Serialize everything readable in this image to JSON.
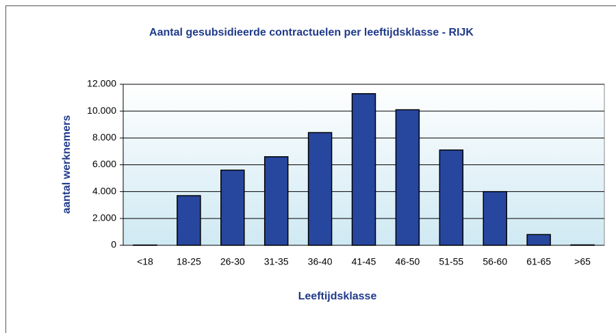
{
  "chart_data": {
    "type": "bar",
    "title": "Aantal gesubsidieerde contractuelen per leeftijdsklasse - RIJK",
    "x_label": "Leeftijdsklasse",
    "y_label": "aantal werknemers",
    "categories": [
      "<18",
      "18-25",
      "26-30",
      "31-35",
      "36-40",
      "41-45",
      "46-50",
      "51-55",
      "56-60",
      "61-65",
      ">65"
    ],
    "values": [
      20,
      3700,
      5600,
      6600,
      8400,
      11300,
      10100,
      7100,
      4000,
      800,
      30
    ],
    "color": "#27479e",
    "ylim": [
      0,
      12000
    ],
    "yticks": [
      0,
      {
        "value": 2000,
        "label": "2.000"
      },
      {
        "value": 4000,
        "label": "4.000"
      },
      {
        "value": 6000,
        "label": "6.000"
      },
      {
        "value": 8000,
        "label": "8.000"
      },
      {
        "value": 10000,
        "label": "10.000"
      },
      {
        "value": 12000,
        "label": "12.000"
      }
    ],
    "grid": true
  }
}
